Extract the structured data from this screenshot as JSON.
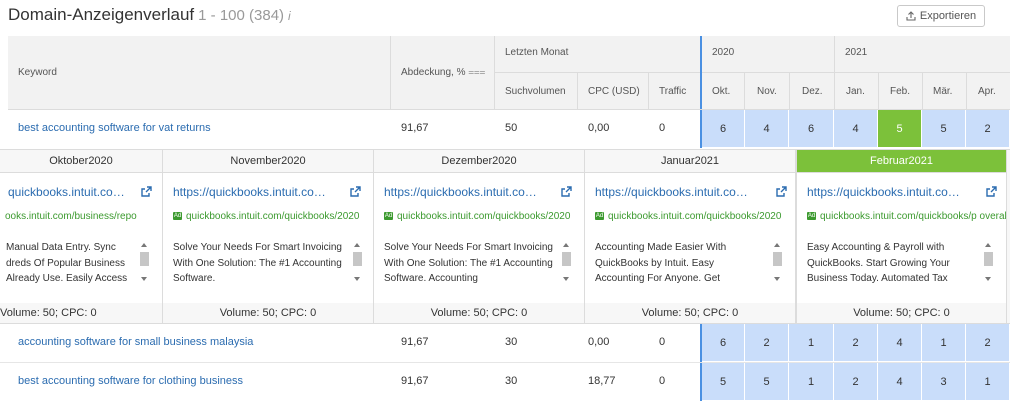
{
  "header": {
    "title": "Domain-Anzeigenverlauf",
    "range": "1 - 100 (384)",
    "info_icon": "info-icon",
    "export_label": "Exportieren",
    "export_icon": "upload-icon"
  },
  "table": {
    "col_keyword": "Keyword",
    "col_coverage": "Abdeckung, %",
    "group_last_month": "Letzten Monat",
    "col_search_volume": "Suchvolumen",
    "col_cpc": "CPC (USD)",
    "col_traffic": "Traffic",
    "years": [
      "2020",
      "2021"
    ],
    "months": [
      "Okt.",
      "Nov.",
      "Dez.",
      "Jan.",
      "Feb.",
      "Mär.",
      "Apr."
    ],
    "rows": [
      {
        "keyword": "best accounting software for vat returns",
        "coverage": "91,67",
        "volume": "50",
        "cpc": "0,00",
        "traffic": "0",
        "months": [
          "6",
          "4",
          "6",
          "4",
          "5",
          "5",
          "2"
        ],
        "highlight_index": 4
      },
      {
        "keyword": "accounting software for small business malaysia",
        "coverage": "91,67",
        "volume": "30",
        "cpc": "0,00",
        "traffic": "0",
        "months": [
          "6",
          "2",
          "1",
          "2",
          "4",
          "1",
          "2"
        ]
      },
      {
        "keyword": "best accounting software for clothing business",
        "coverage": "91,67",
        "volume": "30",
        "cpc": "18,77",
        "traffic": "0",
        "months": [
          "5",
          "5",
          "1",
          "2",
          "4",
          "3",
          "1"
        ]
      }
    ]
  },
  "panels": [
    {
      "title": "Oktober2020",
      "url": "quickbooks.intuit.co…",
      "display_url": "ooks.intuit.com/business/repo",
      "desc": "Manual Data Entry. Sync dreds Of Popular Business Already Use. Easily Access",
      "footer": "Volume: 50; CPC: 0"
    },
    {
      "title": "November2020",
      "url": "https://quickbooks.intuit.co…",
      "display_url": "quickbooks.intuit.com/quickbooks/2020",
      "desc": "Solve Your Needs For Smart Invoicing With One Solution: The #1 Accounting Software.",
      "footer": "Volume: 50; CPC: 0"
    },
    {
      "title": "Dezember2020",
      "url": "https://quickbooks.intuit.co…",
      "display_url": "quickbooks.intuit.com/quickbooks/2020",
      "desc": "Solve Your Needs For Smart Invoicing With One Solution: The #1 Accounting Software. Accounting",
      "footer": "Volume: 50; CPC: 0"
    },
    {
      "title": "Januar2021",
      "url": "https://quickbooks.intuit.co…",
      "display_url": "quickbooks.intuit.com/quickbooks/2020",
      "desc": "Accounting Made Easier With QuickBooks by Intuit. Easy Accounting For Anyone. Get",
      "footer": "Volume: 50; CPC: 0"
    },
    {
      "title": "Februar2021",
      "url": "https://quickbooks.intuit.co…",
      "display_url": "quickbooks.intuit.com/quickbooks/p overall",
      "desc": "Easy Accounting & Payroll with QuickBooks. Start Growing Your Business Today. Automated Tax",
      "footer": "Volume: 50; CPC: 0",
      "active": true
    }
  ],
  "colors": {
    "accent_blue": "#4a90e2",
    "cell_blue": "#c9ddfa",
    "highlight_green": "#7cc13a",
    "link": "#2b6cb0",
    "url_green": "#3c9a2f"
  }
}
